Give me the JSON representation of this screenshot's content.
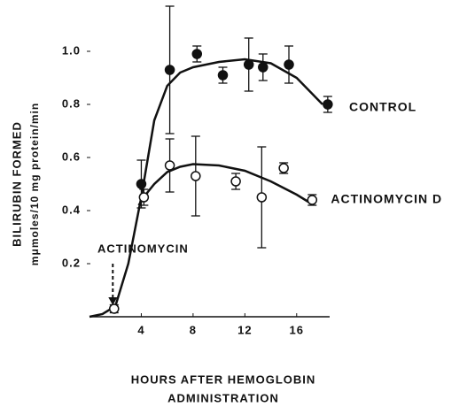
{
  "chart_data": {
    "type": "scatter",
    "ylabel": [
      "BILIRUBIN FORMED",
      "mμmoles/10 mg protein/min"
    ],
    "xlabel": [
      "HOURS AFTER HEMOGLOBIN",
      "ADMINISTRATION"
    ],
    "annotation": "ACTINOMYCIN",
    "annotation_x": 1.8,
    "xlim": [
      0,
      18
    ],
    "ylim": [
      0,
      1.0
    ],
    "xticks": [
      4,
      8,
      12,
      16
    ],
    "yticks": [
      0.2,
      0.4,
      0.6,
      {
        "value": 0.8,
        "label": "0.8"
      },
      {
        "value": 1.0,
        "label": "1.0"
      }
    ],
    "series": [
      {
        "name": "CONTROL",
        "marker": "filled",
        "color": "#111111",
        "x": [
          4,
          6.2,
          8.3,
          10.3,
          12.3,
          13.4,
          15.4,
          18.4
        ],
        "values": [
          0.5,
          0.93,
          0.99,
          0.91,
          0.95,
          0.94,
          0.95,
          0.8
        ],
        "errors": [
          0.09,
          0.24,
          0.03,
          0.03,
          0.1,
          0.05,
          0.07,
          0.03
        ],
        "fit_x": [
          0,
          1,
          2,
          3,
          4,
          5,
          6,
          7,
          8,
          10,
          12,
          14,
          16,
          18
        ],
        "fit_y": [
          0,
          0.01,
          0.04,
          0.2,
          0.45,
          0.74,
          0.87,
          0.92,
          0.94,
          0.96,
          0.97,
          0.955,
          0.9,
          0.8
        ]
      },
      {
        "name": "ACTINOMYCIN D",
        "marker": "open",
        "color": "#111111",
        "x": [
          1.9,
          4.2,
          6.2,
          8.2,
          11.3,
          13.3,
          15,
          17.2
        ],
        "values": [
          0.03,
          0.45,
          0.57,
          0.53,
          0.51,
          0.45,
          0.56,
          0.44
        ],
        "errors": [
          0.015,
          0.03,
          0.1,
          0.15,
          0.03,
          0.19,
          0.02,
          0.02
        ],
        "fit_x": [
          3.8,
          4.5,
          5,
          6,
          7,
          8,
          10,
          12,
          14,
          16,
          17
        ],
        "fit_y": [
          0.42,
          0.47,
          0.5,
          0.545,
          0.565,
          0.575,
          0.57,
          0.55,
          0.51,
          0.46,
          0.43
        ]
      }
    ]
  }
}
